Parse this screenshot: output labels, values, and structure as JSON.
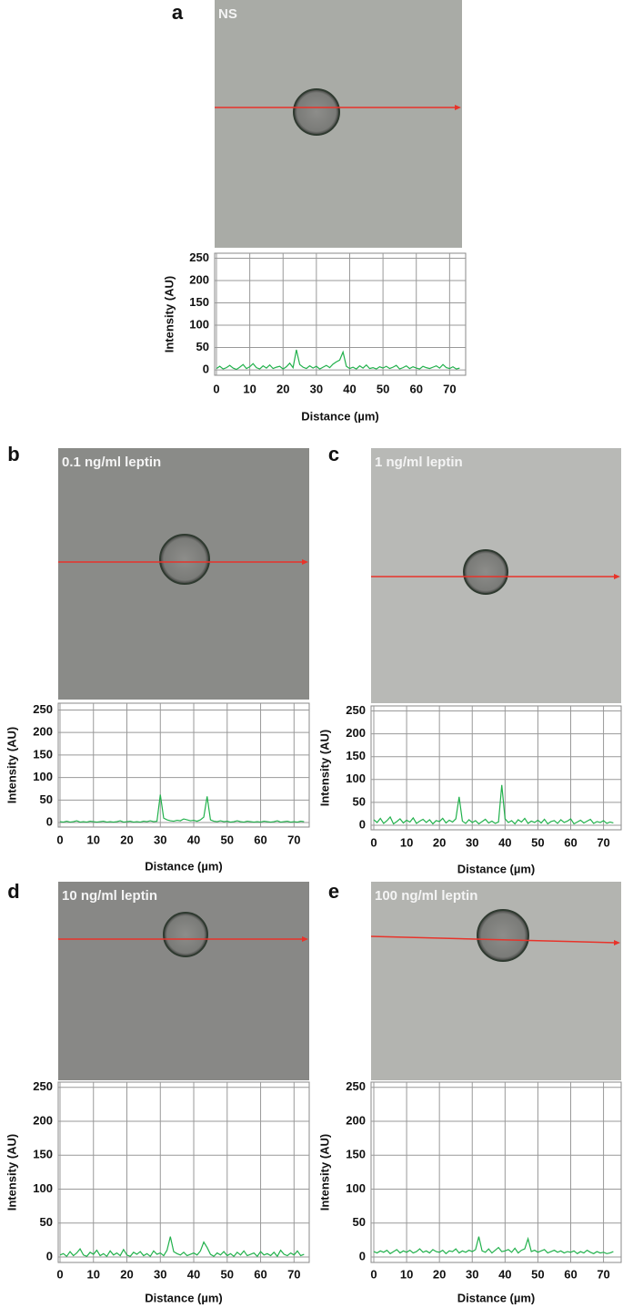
{
  "chart_data": [
    {
      "type": "line",
      "panel": "a",
      "image_label": "NS",
      "xlabel": "Distance (µm)",
      "ylabel": "Intensity (AU)",
      "x": [
        0,
        1,
        2,
        3,
        4,
        5,
        6,
        7,
        8,
        9,
        10,
        11,
        12,
        13,
        14,
        15,
        16,
        17,
        18,
        19,
        20,
        21,
        22,
        23,
        24,
        25,
        26,
        27,
        28,
        29,
        30,
        31,
        32,
        33,
        34,
        35,
        36,
        37,
        38,
        39,
        40,
        41,
        42,
        43,
        44,
        45,
        46,
        47,
        48,
        49,
        50,
        51,
        52,
        53,
        54,
        55,
        56,
        57,
        58,
        59,
        60,
        61,
        62,
        63,
        64,
        65,
        66,
        67,
        68,
        69,
        70,
        71,
        72,
        73
      ],
      "values": [
        3,
        8,
        2,
        5,
        10,
        4,
        1,
        6,
        12,
        3,
        7,
        14,
        5,
        2,
        9,
        4,
        11,
        3,
        6,
        8,
        2,
        7,
        15,
        5,
        45,
        12,
        6,
        3,
        9,
        4,
        8,
        2,
        6,
        10,
        5,
        13,
        18,
        22,
        40,
        8,
        3,
        6,
        2,
        9,
        4,
        11,
        3,
        5,
        2,
        7,
        4,
        8,
        3,
        6,
        10,
        2,
        5,
        9,
        3,
        7,
        4,
        2,
        8,
        5,
        3,
        6,
        9,
        4,
        12,
        5,
        3,
        7,
        2,
        4
      ],
      "color": "#22b14c",
      "xlim": [
        0,
        74
      ],
      "ylim": [
        -8,
        255
      ],
      "xticks": [
        0,
        10,
        20,
        30,
        40,
        50,
        60,
        70
      ],
      "yticks": [
        0,
        50,
        100,
        150,
        200,
        250
      ],
      "grid": true
    },
    {
      "type": "line",
      "panel": "b",
      "image_label": "0.1 ng/ml leptin",
      "xlabel": "Distance (µm)",
      "ylabel": "Intensity (AU)",
      "x": [
        0,
        1,
        2,
        3,
        4,
        5,
        6,
        7,
        8,
        9,
        10,
        11,
        12,
        13,
        14,
        15,
        16,
        17,
        18,
        19,
        20,
        21,
        22,
        23,
        24,
        25,
        26,
        27,
        28,
        29,
        30,
        31,
        32,
        33,
        34,
        35,
        36,
        37,
        38,
        39,
        40,
        41,
        42,
        43,
        44,
        45,
        46,
        47,
        48,
        49,
        50,
        51,
        52,
        53,
        54,
        55,
        56,
        57,
        58,
        59,
        60,
        61,
        62,
        63,
        64,
        65,
        66,
        67,
        68,
        69,
        70,
        71,
        72,
        73
      ],
      "values": [
        2,
        1,
        3,
        1,
        2,
        4,
        1,
        2,
        1,
        3,
        2,
        1,
        2,
        3,
        1,
        2,
        1,
        2,
        4,
        1,
        2,
        3,
        1,
        2,
        1,
        3,
        2,
        4,
        2,
        3,
        62,
        10,
        6,
        4,
        3,
        5,
        4,
        8,
        6,
        4,
        5,
        3,
        6,
        12,
        58,
        6,
        3,
        2,
        4,
        2,
        3,
        1,
        2,
        4,
        2,
        1,
        3,
        2,
        1,
        2,
        1,
        3,
        2,
        1,
        2,
        4,
        1,
        2,
        3,
        1,
        2,
        1,
        3,
        2
      ],
      "color": "#22b14c",
      "xlim": [
        0,
        74
      ],
      "ylim": [
        -8,
        255
      ],
      "xticks": [
        0,
        10,
        20,
        30,
        40,
        50,
        60,
        70
      ],
      "yticks": [
        0,
        50,
        100,
        150,
        200,
        250
      ],
      "grid": true
    },
    {
      "type": "line",
      "panel": "c",
      "image_label": "1 ng/ml leptin",
      "xlabel": "Distance (µm)",
      "ylabel": "Intensity (AU)",
      "x": [
        0,
        1,
        2,
        3,
        4,
        5,
        6,
        7,
        8,
        9,
        10,
        11,
        12,
        13,
        14,
        15,
        16,
        17,
        18,
        19,
        20,
        21,
        22,
        23,
        24,
        25,
        26,
        27,
        28,
        29,
        30,
        31,
        32,
        33,
        34,
        35,
        36,
        37,
        38,
        39,
        40,
        41,
        42,
        43,
        44,
        45,
        46,
        47,
        48,
        49,
        50,
        51,
        52,
        53,
        54,
        55,
        56,
        57,
        58,
        59,
        60,
        61,
        62,
        63,
        64,
        65,
        66,
        67,
        68,
        69,
        70,
        71,
        72,
        73
      ],
      "values": [
        12,
        6,
        15,
        4,
        10,
        18,
        3,
        8,
        14,
        5,
        11,
        7,
        16,
        4,
        9,
        13,
        6,
        12,
        3,
        10,
        8,
        15,
        5,
        11,
        7,
        14,
        62,
        9,
        4,
        12,
        6,
        10,
        3,
        8,
        13,
        5,
        9,
        4,
        7,
        88,
        14,
        6,
        10,
        3,
        12,
        7,
        15,
        4,
        9,
        6,
        11,
        5,
        13,
        3,
        8,
        10,
        4,
        12,
        6,
        9,
        14,
        3,
        7,
        11,
        5,
        9,
        13,
        4,
        8,
        6,
        10,
        4,
        7,
        5
      ],
      "color": "#22b14c",
      "xlim": [
        0,
        74
      ],
      "ylim": [
        -8,
        255
      ],
      "xticks": [
        0,
        10,
        20,
        30,
        40,
        50,
        60,
        70
      ],
      "yticks": [
        0,
        50,
        100,
        150,
        200,
        250
      ],
      "grid": true
    },
    {
      "type": "line",
      "panel": "d",
      "image_label": "10 ng/ml leptin",
      "xlabel": "Distance (µm)",
      "ylabel": "Intensity (AU)",
      "x": [
        0,
        1,
        2,
        3,
        4,
        5,
        6,
        7,
        8,
        9,
        10,
        11,
        12,
        13,
        14,
        15,
        16,
        17,
        18,
        19,
        20,
        21,
        22,
        23,
        24,
        25,
        26,
        27,
        28,
        29,
        30,
        31,
        32,
        33,
        34,
        35,
        36,
        37,
        38,
        39,
        40,
        41,
        42,
        43,
        44,
        45,
        46,
        47,
        48,
        49,
        50,
        51,
        52,
        53,
        54,
        55,
        56,
        57,
        58,
        59,
        60,
        61,
        62,
        63,
        64,
        65,
        66,
        67,
        68,
        69,
        70,
        71,
        72,
        73
      ],
      "values": [
        3,
        5,
        1,
        8,
        2,
        6,
        12,
        3,
        1,
        7,
        4,
        10,
        2,
        5,
        1,
        9,
        3,
        6,
        2,
        11,
        3,
        1,
        7,
        4,
        8,
        2,
        5,
        1,
        9,
        4,
        6,
        2,
        10,
        30,
        8,
        5,
        3,
        7,
        2,
        4,
        6,
        3,
        9,
        22,
        14,
        4,
        1,
        6,
        3,
        8,
        2,
        5,
        1,
        7,
        3,
        9,
        2,
        4,
        6,
        1,
        8,
        3,
        5,
        2,
        7,
        1,
        10,
        4,
        2,
        6,
        3,
        9,
        2,
        4
      ],
      "color": "#22b14c",
      "xlim": [
        0,
        74
      ],
      "ylim": [
        -8,
        255
      ],
      "xticks": [
        0,
        10,
        20,
        30,
        40,
        50,
        60,
        70
      ],
      "yticks": [
        0,
        50,
        100,
        150,
        200,
        250
      ],
      "grid": true
    },
    {
      "type": "line",
      "panel": "e",
      "image_label": "100 ng/ml leptin",
      "xlabel": "Distance (µm)",
      "ylabel": "Intensity (AU)",
      "x": [
        0,
        1,
        2,
        3,
        4,
        5,
        6,
        7,
        8,
        9,
        10,
        11,
        12,
        13,
        14,
        15,
        16,
        17,
        18,
        19,
        20,
        21,
        22,
        23,
        24,
        25,
        26,
        27,
        28,
        29,
        30,
        31,
        32,
        33,
        34,
        35,
        36,
        37,
        38,
        39,
        40,
        41,
        42,
        43,
        44,
        45,
        46,
        47,
        48,
        49,
        50,
        51,
        52,
        53,
        54,
        55,
        56,
        57,
        58,
        59,
        60,
        61,
        62,
        63,
        64,
        65,
        66,
        67,
        68,
        69,
        70,
        71,
        72,
        73
      ],
      "values": [
        8,
        6,
        9,
        7,
        10,
        5,
        8,
        11,
        6,
        9,
        7,
        10,
        6,
        8,
        12,
        7,
        9,
        6,
        11,
        8,
        7,
        10,
        5,
        9,
        8,
        12,
        6,
        9,
        7,
        10,
        8,
        11,
        30,
        9,
        7,
        12,
        6,
        10,
        14,
        8,
        9,
        11,
        7,
        13,
        6,
        10,
        12,
        27,
        8,
        10,
        7,
        9,
        11,
        6,
        8,
        10,
        7,
        9,
        6,
        8,
        7,
        9,
        5,
        8,
        6,
        10,
        7,
        5,
        8,
        6,
        7,
        5,
        6,
        8
      ],
      "color": "#22b14c",
      "xlim": [
        0,
        74
      ],
      "ylim": [
        -8,
        255
      ],
      "xticks": [
        0,
        10,
        20,
        30,
        40,
        50,
        60,
        70
      ],
      "yticks": [
        0,
        50,
        100,
        150,
        200,
        250
      ],
      "grid": true
    }
  ]
}
